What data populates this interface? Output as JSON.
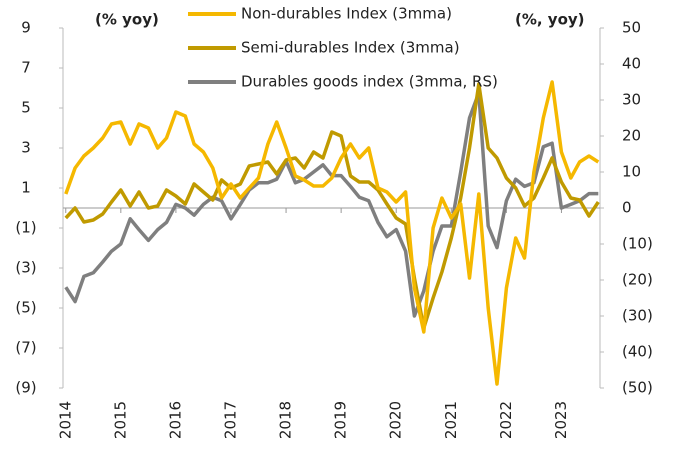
{
  "chart_data": {
    "type": "line",
    "left_axis_label": "(% yoy)",
    "right_axis_label": "(%, yoy)",
    "x": [
      2014,
      2014.17,
      2014.33,
      2014.5,
      2014.67,
      2014.83,
      2015,
      2015.17,
      2015.33,
      2015.5,
      2015.67,
      2015.83,
      2016,
      2016.17,
      2016.33,
      2016.5,
      2016.67,
      2016.83,
      2017,
      2017.17,
      2017.33,
      2017.5,
      2017.67,
      2017.83,
      2018,
      2018.17,
      2018.33,
      2018.5,
      2018.67,
      2018.83,
      2019,
      2019.17,
      2019.33,
      2019.5,
      2019.67,
      2019.83,
      2020,
      2020.17,
      2020.33,
      2020.5,
      2020.67,
      2020.83,
      2021,
      2021.17,
      2021.33,
      2021.5,
      2021.67,
      2021.83,
      2022,
      2022.17,
      2022.33,
      2022.5,
      2022.67,
      2022.83,
      2023,
      2023.17,
      2023.33,
      2023.5,
      2023.67
    ],
    "xlim": [
      2013.95,
      2023.7
    ],
    "xticks": [
      2014,
      2015,
      2016,
      2017,
      2018,
      2019,
      2020,
      2021,
      2022,
      2023
    ],
    "ylim": [
      -9,
      9
    ],
    "yticks": [
      {
        "value": -9,
        "label": "(9)"
      },
      {
        "value": -7,
        "label": "(7)"
      },
      {
        "value": -5,
        "label": "(5)"
      },
      {
        "value": -3,
        "label": "(3)"
      },
      {
        "value": -1,
        "label": "(1)"
      },
      1,
      3,
      5,
      7,
      9
    ],
    "y2lim": [
      -50,
      50
    ],
    "y2ticks": [
      {
        "value": -50,
        "label": "(50)"
      },
      {
        "value": -40,
        "label": "(40)"
      },
      {
        "value": -30,
        "label": "(30)"
      },
      {
        "value": -20,
        "label": "(20)"
      },
      {
        "value": -10,
        "label": "(10)"
      },
      0,
      10,
      20,
      30,
      40,
      50
    ],
    "series": [
      {
        "name": "Non-durables Index (3mma)",
        "color": "#f5b800",
        "values": [
          0.7,
          2.0,
          2.6,
          3.0,
          3.5,
          4.2,
          4.3,
          3.2,
          4.2,
          4.0,
          3.0,
          3.5,
          4.8,
          4.6,
          3.2,
          2.8,
          2.0,
          0.5,
          1.2,
          0.5,
          1.0,
          1.5,
          3.2,
          4.3,
          3.0,
          1.6,
          1.4,
          1.1,
          1.1,
          1.5,
          2.5,
          3.2,
          2.5,
          3.0,
          1.0,
          0.8,
          0.3,
          0.8,
          -4.0,
          -6.2,
          -1.0,
          0.5,
          -0.5,
          0.2,
          -3.5,
          0.7,
          -5.0,
          -8.8,
          -4.0,
          -1.5,
          -2.5,
          1.8,
          4.5,
          6.3,
          2.8,
          1.5,
          2.3,
          2.6,
          2.3
        ]
      },
      {
        "name": "Semi-durables Index (3mma)",
        "color": "#c09a00",
        "values": [
          -0.5,
          0,
          -0.7,
          -0.6,
          -0.3,
          0.3,
          0.9,
          0.1,
          0.8,
          0.0,
          0.1,
          0.9,
          0.6,
          0.2,
          1.2,
          0.8,
          0.4,
          1.4,
          1.0,
          1.2,
          2.1,
          2.2,
          2.3,
          1.7,
          2.4,
          2.5,
          2.0,
          2.8,
          2.5,
          3.8,
          3.6,
          1.6,
          1.3,
          1.3,
          0.9,
          0.2,
          -0.5,
          -0.8,
          -3.5,
          -6.0,
          -4.5,
          -3.2,
          -1.5,
          0.5,
          3.0,
          6.2,
          3.0,
          2.5,
          1.5,
          1.0,
          0.1,
          0.5,
          1.5,
          2.5,
          1.3,
          0.5,
          0.4,
          -0.4,
          0.3
        ]
      },
      {
        "name": "Durables goods index (3mma, RS)",
        "color": "#7f7f7f",
        "axis": "y2",
        "values": [
          -22,
          -26,
          -19,
          -18,
          -15,
          -12,
          -10,
          -3,
          -6,
          -9,
          -6,
          -4,
          1,
          0,
          -2,
          1,
          3,
          2,
          -3,
          1,
          5,
          7,
          7,
          8,
          13,
          7,
          8,
          10,
          12,
          9,
          9,
          6,
          3,
          2,
          -4,
          -8,
          -6,
          -12,
          -30,
          -23,
          -12,
          -5,
          -5,
          10,
          25,
          32,
          -5,
          -11,
          2,
          8,
          6,
          7,
          17,
          18,
          0,
          1,
          2,
          4,
          4
        ]
      }
    ]
  }
}
